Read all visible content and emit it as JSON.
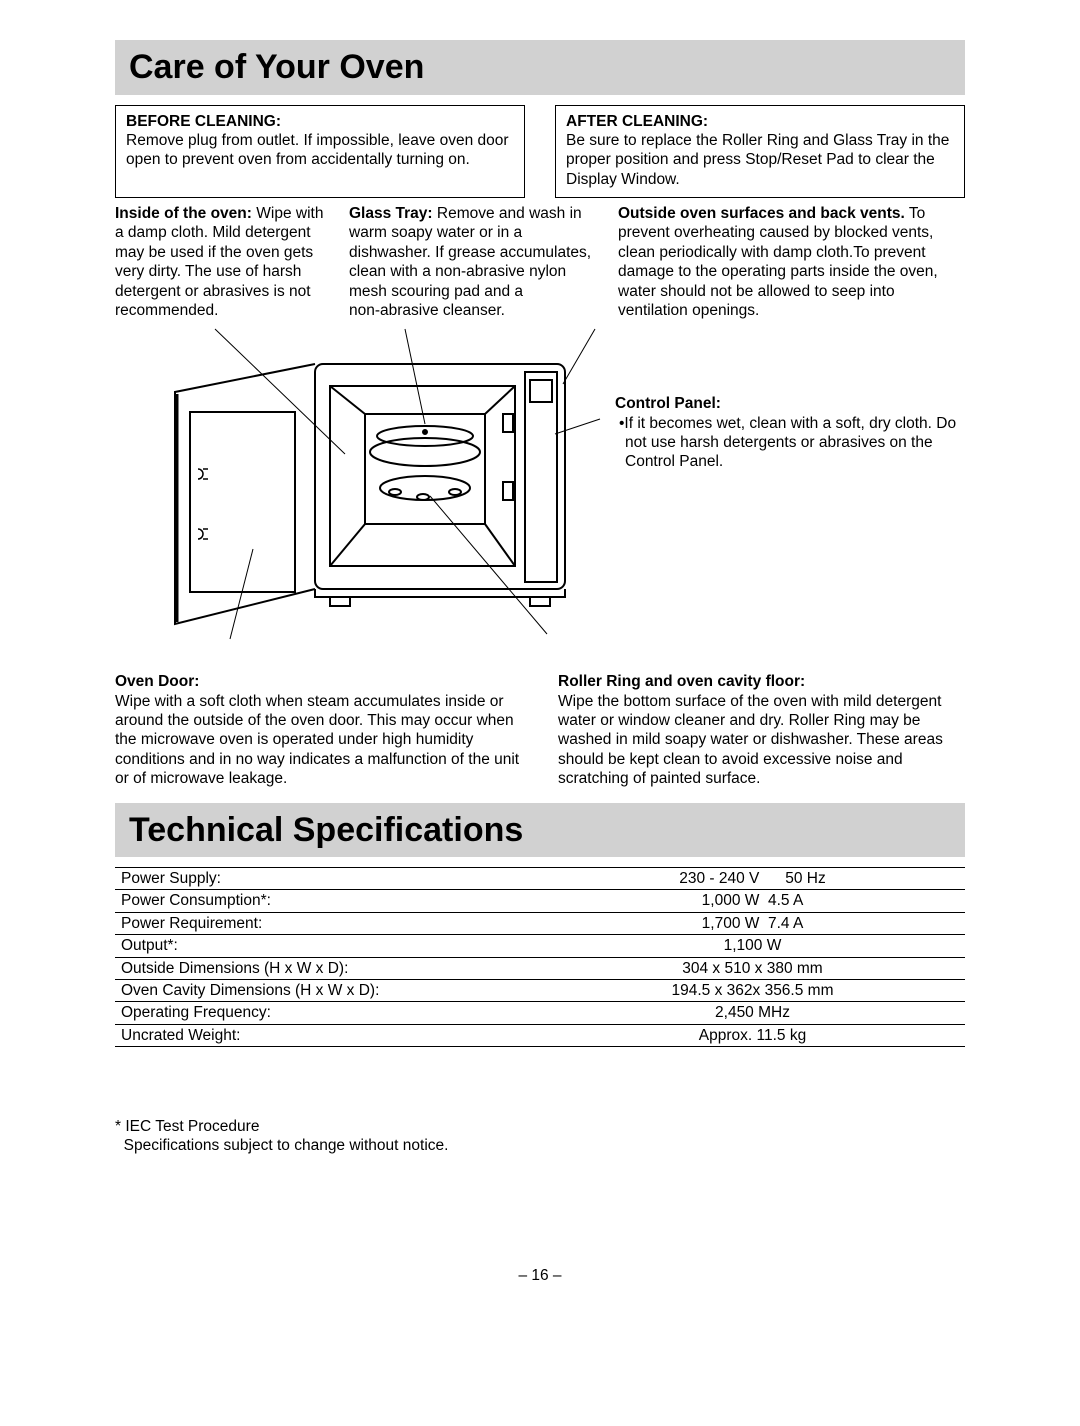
{
  "section1": {
    "title": "Care of Your Oven",
    "before": {
      "title": "BEFORE CLEANING:",
      "body": "Remove plug from outlet. If impossible, leave oven door open to prevent oven from accidentally turning on."
    },
    "after": {
      "title": "AFTER CLEANING:",
      "body": "Be sure to replace the Roller Ring and Glass Tray in the proper position and press Stop/Reset  Pad to clear the Display Window."
    },
    "inside": {
      "title": "Inside of the oven:",
      "body": "Wipe with a damp cloth. Mild detergent may be used if the oven gets very dirty. The use of harsh detergent or abrasives is not recommended."
    },
    "glass": {
      "title": "Glass Tray:",
      "body": "Remove and wash in warm soapy water or in a dishwasher. If grease accumulates, clean with a non‑abrasive nylon mesh scouring pad and a non‑abrasive cleanser."
    },
    "outside": {
      "title": "Outside oven surfaces and back vents.",
      "body": "To prevent overheating caused by blocked vents, clean periodically with damp cloth.To prevent damage to the operating parts inside the oven, water should not be allowed to seep into ventilation openings."
    },
    "control": {
      "title": "Control Panel:",
      "body": "•If it becomes wet, clean with a soft, dry cloth. Do not use harsh detergents or abrasives on the Control Panel."
    },
    "door": {
      "title": "Oven Door:",
      "body": "Wipe with a soft cloth when steam accumulates inside or around the outside of the oven door. This may occur when the microwave oven is operated under high humidity conditions and in no way indicates a malfunction of the unit or of microwave leakage."
    },
    "roller": {
      "title": "Roller Ring and oven cavity floor:",
      "body": "Wipe the bottom surface of the oven with mild detergent water or window cleaner and dry. Roller Ring may be washed in mild soapy water or dishwasher. These areas should be kept clean to avoid excessive noise and scratching of painted surface."
    }
  },
  "section2": {
    "title": "Technical Specifications",
    "rows": [
      [
        "Power Supply:",
        "230 - 240 V      50 Hz"
      ],
      [
        "Power Consumption*:",
        "1,000 W  4.5 A"
      ],
      [
        "Power Requirement:",
        "1,700 W  7.4 A"
      ],
      [
        "Output*:",
        "1,100 W"
      ],
      [
        "Outside Dimensions (H x W x D):",
        "304 x 510 x 380 mm"
      ],
      [
        "Oven Cavity Dimensions (H x W x D):",
        "194.5 x 362x 356.5 mm"
      ],
      [
        "Operating Frequency:",
        "2,450 MHz"
      ],
      [
        "Uncrated Weight:",
        "Approx. 11.5 kg"
      ]
    ],
    "footnote1": "* IEC Test Procedure",
    "footnote2": "  Specifications subject to change without notice."
  },
  "pageNumber": "– 16 –",
  "diagram": {
    "stroke": "#000000",
    "strokeWidth": 2
  }
}
